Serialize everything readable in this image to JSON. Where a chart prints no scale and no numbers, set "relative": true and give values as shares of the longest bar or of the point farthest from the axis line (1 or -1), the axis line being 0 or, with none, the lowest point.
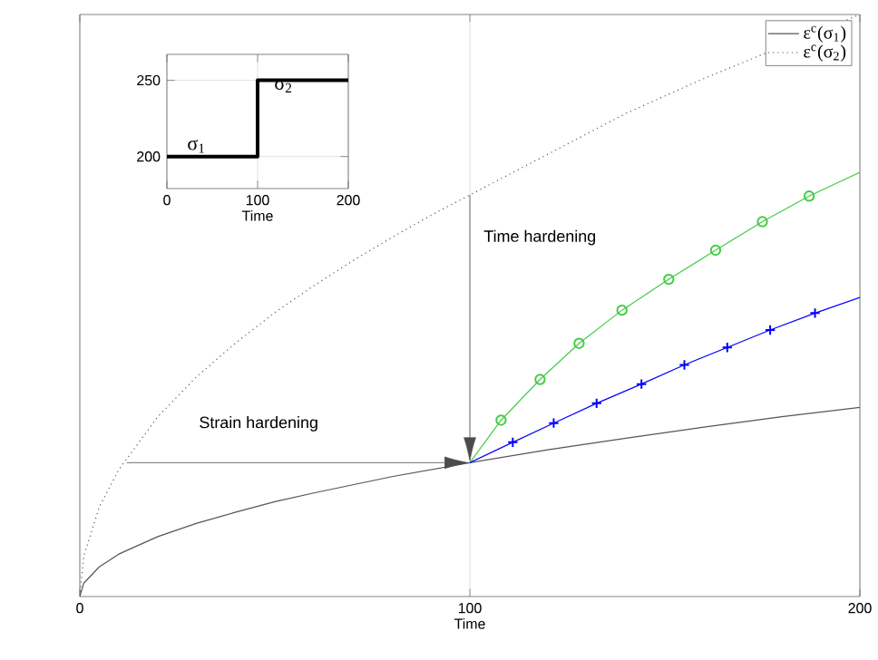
{
  "chart_data": [
    {
      "type": "line",
      "xlabel": "Time",
      "relative": true,
      "xlim": [
        0,
        200
      ],
      "xticks": [
        0,
        100,
        200
      ],
      "grid": "x",
      "legend": "top right",
      "tick_labels": "x",
      "annotations": [
        "Strain hardening",
        "Time hardening"
      ],
      "series": [
        {
          "name": "ε$^{c}$(σ$_{1}$)",
          "color": "#555555",
          "line_style": "solid",
          "marker": "none",
          "x": [
            0,
            1,
            5,
            10,
            20,
            30,
            40,
            50,
            60,
            70,
            80,
            90,
            100,
            120,
            140,
            160,
            180,
            200
          ],
          "values": [
            0,
            0.023,
            0.051,
            0.073,
            0.103,
            0.126,
            0.145,
            0.163,
            0.178,
            0.192,
            0.206,
            0.218,
            0.23,
            0.252,
            0.272,
            0.291,
            0.309,
            0.325
          ]
        },
        {
          "name": "ε$^{c}$(σ$_{2}$)",
          "color": "#555555",
          "line_style": "dotted",
          "marker": "none",
          "x": [
            0,
            1,
            5,
            10,
            20,
            30,
            40,
            50,
            60,
            70,
            80,
            90,
            100,
            120,
            140,
            160,
            180,
            200
          ],
          "values": [
            0,
            0.069,
            0.154,
            0.218,
            0.309,
            0.378,
            0.436,
            0.488,
            0.534,
            0.577,
            0.617,
            0.655,
            0.69,
            0.76,
            0.83,
            0.89,
            null,
            1.0
          ]
        },
        {
          "color": "#44cc44",
          "line_style": "solid",
          "marker": "circle",
          "x": [
            100,
            108,
            118,
            128,
            139,
            151,
            163,
            175,
            187,
            200
          ],
          "values": [
            0.23,
            0.303,
            0.373,
            0.435,
            0.492,
            0.545,
            0.595,
            0.644,
            0.688,
            0.729
          ]
        },
        {
          "color": "#0000ff",
          "line_style": "solid",
          "marker": "cross",
          "x": [
            100,
            111,
            121.5,
            132.5,
            144,
            155,
            166,
            177,
            188.5,
            200
          ],
          "values": [
            0.23,
            0.265,
            0.298,
            0.332,
            0.365,
            0.398,
            0.428,
            0.458,
            0.487,
            0.514
          ]
        }
      ]
    },
    {
      "type": "line",
      "xlabel": "Time",
      "xlim": [
        0,
        200
      ],
      "xticks": [
        0,
        100,
        200
      ],
      "ylim": [
        179,
        267
      ],
      "yticks": [
        200,
        250
      ],
      "grid": true,
      "annotations": [
        "σ$_{1}$",
        "σ$_{2}$"
      ],
      "series": [
        {
          "color": "#000000",
          "line_style": "solid",
          "marker": "none",
          "x": [
            0,
            100,
            100,
            200
          ],
          "values": [
            200,
            200,
            250,
            250
          ]
        }
      ]
    }
  ]
}
